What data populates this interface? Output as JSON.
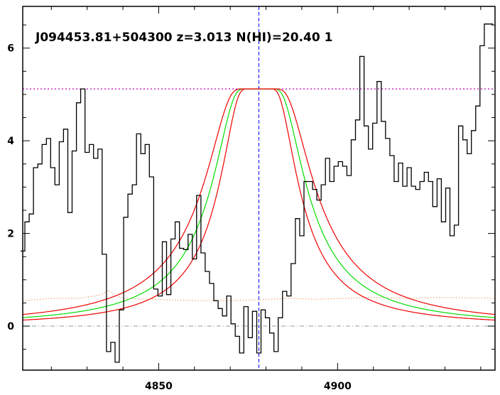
{
  "chart_data": {
    "type": "line",
    "title": "J094453.81+504300 z=3.013 N(HI)=20.40 1",
    "xlim": [
      4812,
      4944
    ],
    "ylim": [
      -0.95,
      6.9
    ],
    "x_ticks": [
      4850,
      4900
    ],
    "y_ticks": [
      0,
      2,
      4,
      6
    ],
    "continuum_level": 5.12,
    "zero_level": 0,
    "line_center": 4878,
    "series": [
      {
        "style": "histogram",
        "color": "#000000",
        "x": [
          4812.0,
          4813.2,
          4814.4,
          4815.6,
          4816.8,
          4818.0,
          4819.2,
          4820.4,
          4821.6,
          4822.8,
          4824.0,
          4825.2,
          4826.4,
          4827.6,
          4828.8,
          4830.0,
          4831.2,
          4832.4,
          4833.6,
          4834.8,
          4836.0,
          4837.2,
          4838.4,
          4839.6,
          4840.8,
          4842.0,
          4843.2,
          4844.4,
          4845.6,
          4846.8,
          4848.0,
          4849.2,
          4850.4,
          4851.6,
          4852.8,
          4854.0,
          4855.2,
          4856.4,
          4857.6,
          4858.8,
          4860.0,
          4861.2,
          4862.4,
          4863.6,
          4864.8,
          4866.0,
          4867.2,
          4868.4,
          4869.6,
          4870.8,
          4872.0,
          4873.2,
          4874.4,
          4875.6,
          4876.8,
          4878.0,
          4879.2,
          4880.4,
          4881.6,
          4882.8,
          4884.0,
          4885.2,
          4886.4,
          4887.6,
          4888.8,
          4890.0,
          4891.2,
          4892.4,
          4893.6,
          4894.8,
          4896.0,
          4897.2,
          4898.4,
          4899.6,
          4900.8,
          4902.0,
          4903.2,
          4904.4,
          4905.6,
          4906.8,
          4908.0,
          4909.2,
          4910.4,
          4911.6,
          4912.8,
          4914.0,
          4915.2,
          4916.4,
          4917.6,
          4918.8,
          4920.0,
          4921.2,
          4922.4,
          4923.6,
          4924.8,
          4926.0,
          4927.2,
          4928.4,
          4929.6,
          4930.8,
          4932.0,
          4933.2,
          4934.4,
          4935.6,
          4936.8,
          4938.0,
          4939.2,
          4940.4,
          4941.6,
          4942.8
        ],
        "y": [
          1.62,
          2.25,
          2.42,
          3.42,
          3.5,
          3.92,
          4.05,
          3.42,
          3.05,
          3.98,
          4.25,
          2.45,
          3.78,
          4.82,
          5.12,
          3.75,
          3.92,
          3.62,
          3.82,
          1.55,
          -0.55,
          -0.35,
          -0.78,
          0.35,
          2.35,
          2.85,
          3.05,
          4.15,
          3.72,
          3.92,
          3.22,
          0.8,
          0.65,
          1.82,
          0.68,
          1.88,
          2.25,
          1.68,
          1.65,
          1.98,
          1.45,
          2.82,
          1.58,
          1.18,
          0.92,
          0.55,
          0.38,
          0.22,
          0.65,
          0.05,
          -0.22,
          -0.58,
          0.42,
          -0.25,
          0.32,
          -0.58,
          0.35,
          0.18,
          -0.15,
          -0.55,
          0.18,
          0.75,
          0.65,
          1.35,
          2.32,
          1.95,
          3.12,
          3.12,
          2.95,
          2.72,
          3.05,
          3.62,
          3.12,
          3.45,
          3.55,
          3.45,
          3.25,
          4.02,
          4.45,
          5.82,
          4.32,
          3.82,
          4.38,
          5.28,
          4.42,
          4.05,
          3.68,
          3.12,
          3.52,
          3.02,
          3.42,
          3.02,
          2.95,
          3.12,
          3.32,
          3.12,
          2.58,
          3.18,
          2.25,
          2.98,
          1.95,
          2.18,
          4.32,
          4.02,
          3.72,
          4.22,
          4.75,
          6.05,
          6.52,
          6.52
        ]
      },
      {
        "style": "dotted",
        "color": "#f5a070",
        "x": [
          4812,
          4820,
          4828,
          4834,
          4836,
          4838,
          4840,
          4848,
          4860,
          4870,
          4878,
          4886,
          4894,
          4902,
          4910,
          4920,
          4930,
          4944
        ],
        "y": [
          0.55,
          0.6,
          0.6,
          0.68,
          0.78,
          0.66,
          0.6,
          0.58,
          0.55,
          0.55,
          0.57,
          0.6,
          0.58,
          0.6,
          0.62,
          0.6,
          0.62,
          0.6
        ]
      }
    ],
    "voigt_profile": {
      "continuum": 5.12,
      "center": 4878,
      "colors": {
        "fit": "#00dd00",
        "error_band": "#ee0000",
        "continuum_line": "#c000c0",
        "center_line": "#0000ff",
        "zero_line": "#999999"
      }
    }
  }
}
